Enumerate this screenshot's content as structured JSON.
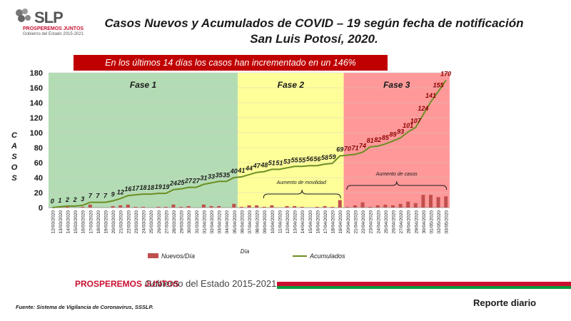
{
  "header": {
    "logo_text": "SLP",
    "logo_sub1": "PROSPEREMOS JUNTOS",
    "logo_sub2": "Gobierno del Estado 2015-2021",
    "title_line1": "Casos Nuevos y Acumulados de COVID – 19 según fecha de notificación",
    "title_line2": "San Luis Potosí, 2020.",
    "banner": "En los últimos 14 días los casos han incrementado en un 146%"
  },
  "footer": {
    "brand": "PROSPEREMOS JUNTOS",
    "government": "Gobierno del Estado 2015-2021",
    "source": "Fuente: Sistema de Vigilancia de Coronavirus, SSSLP.",
    "report": "Reporte diario"
  },
  "colors": {
    "phase1": "#b4dcb4",
    "phase2": "#ffff99",
    "phase3": "#ff9999",
    "line": "#6b8e23",
    "bars": "#c0504d",
    "labels": "#1a1a1a",
    "label_phase3": "#8b0000"
  },
  "chart_data": {
    "type": "bar+line",
    "x": [
      "12/03/2020",
      "13/03/2020",
      "14/03/2020",
      "15/03/2020",
      "16/03/2020",
      "17/03/2020",
      "18/03/2020",
      "19/03/2020",
      "20/03/2020",
      "21/03/2020",
      "22/03/2020",
      "23/03/2020",
      "24/03/2020",
      "25/03/2020",
      "26/03/2020",
      "27/03/2020",
      "28/03/2020",
      "29/03/2020",
      "30/03/2020",
      "31/03/2020",
      "01/04/2020",
      "02/04/2020",
      "03/04/2020",
      "04/04/2020",
      "05/04/2020",
      "06/04/2020",
      "07/04/2020",
      "08/04/2020",
      "09/04/2020",
      "10/04/2020",
      "11/04/2020",
      "12/04/2020",
      "13/04/2020",
      "14/04/2020",
      "15/04/2020",
      "16/04/2020",
      "17/04/2020",
      "18/04/2020",
      "19/04/2020",
      "20/04/2020",
      "21/04/2020",
      "22/04/2020",
      "23/04/2020",
      "24/04/2020",
      "25/04/2020",
      "26/04/2020",
      "27/04/2020",
      "28/04/2020",
      "29/04/2020",
      "30/04/2020",
      "01/05/2020",
      "02/05/2020",
      "03/05/2020"
    ],
    "series": [
      {
        "name": "Nuevos/Día",
        "type": "bar",
        "values": [
          0,
          1,
          1,
          0,
          1,
          4,
          0,
          0,
          2,
          3,
          4,
          1,
          1,
          0,
          1,
          1,
          4,
          1,
          2,
          0,
          4,
          2,
          2,
          0,
          5,
          1,
          3,
          3,
          1,
          3,
          0,
          2,
          2,
          1,
          0,
          1,
          2,
          1,
          10,
          1,
          3,
          7,
          1,
          3,
          4,
          3,
          5,
          8,
          6,
          17,
          17,
          14,
          15
        ]
      },
      {
        "name": "Acumulados",
        "type": "line",
        "values": [
          0,
          1,
          2,
          2,
          3,
          7,
          7,
          7,
          9,
          12,
          16,
          17,
          18,
          18,
          19,
          19,
          24,
          25,
          27,
          27,
          31,
          33,
          35,
          35,
          40,
          41,
          44,
          47,
          48,
          51,
          51,
          53,
          55,
          55,
          56,
          56,
          58,
          59,
          69,
          70,
          71,
          74,
          81,
          82,
          85,
          89,
          93,
          101,
          107,
          124,
          141,
          155,
          170
        ]
      }
    ],
    "xlabel": "Día",
    "ylabel": "CASOS",
    "ylim": [
      0,
      180
    ],
    "yticks": [
      0,
      20,
      40,
      60,
      80,
      100,
      120,
      140,
      160,
      180
    ],
    "legend": [
      "Nuevos/Día",
      "Acumulados"
    ],
    "legend_position": "bottom",
    "phases": [
      {
        "label": "Fase 1",
        "start": "12/03/2020",
        "end": "05/04/2020"
      },
      {
        "label": "Fase 2",
        "start": "06/04/2020",
        "end": "19/04/2020"
      },
      {
        "label": "Fase 3",
        "start": "20/04/2020",
        "end": "03/05/2020"
      }
    ],
    "annotations": [
      {
        "text": "Aumento  de movilidad",
        "start": "09/04/2020",
        "end": "19/04/2020"
      },
      {
        "text": "Aumento  de casos",
        "start": "20/04/2020",
        "end": "03/05/2020"
      }
    ]
  }
}
